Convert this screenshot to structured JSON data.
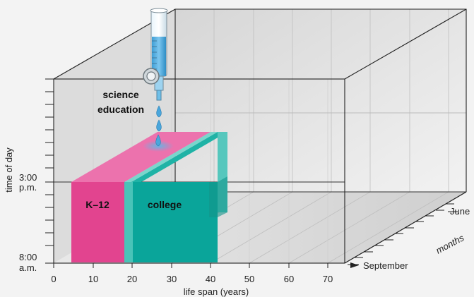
{
  "diagram": {
    "x_axis": {
      "label": "life span (years)",
      "ticks": [
        "0",
        "10",
        "20",
        "30",
        "40",
        "50",
        "60",
        "70"
      ]
    },
    "y_axis": {
      "label": "time of day",
      "tick_labels": {
        "top": {
          "line1": "3:00",
          "line2": "p.m."
        },
        "bottom": {
          "line1": "8:00",
          "line2": "a.m."
        }
      }
    },
    "z_axis": {
      "label": "months",
      "start": "September",
      "end": "June"
    },
    "blocks": {
      "k12": {
        "label": "K–12",
        "color": "#e2448f"
      },
      "college": {
        "label": "college",
        "color": "#0aa59a"
      }
    },
    "source": {
      "label_line1": "science",
      "label_line2": "education",
      "color": "#5fb7e6"
    }
  }
}
